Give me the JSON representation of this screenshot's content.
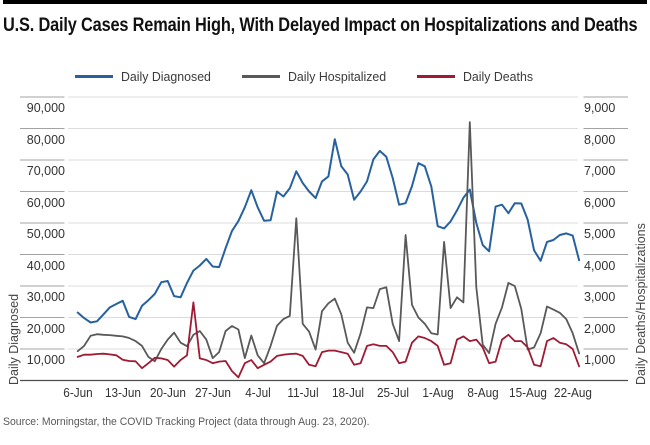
{
  "chart_data": {
    "type": "line",
    "title": "U.S. Daily Cases Remain High, With Delayed Impact on Hospitalizations and Deaths",
    "grid": "horizontal",
    "legend_position": "top",
    "n_points": 79,
    "x_ticks": {
      "labels": [
        "6-Jun",
        "13-Jun",
        "20-Jun",
        "27-Jun",
        "4-Jul",
        "11-Jul",
        "18-Jul",
        "25-Jul",
        "1-Aug",
        "8-Aug",
        "15-Aug",
        "22-Aug"
      ],
      "point_indices": [
        0,
        7,
        14,
        21,
        28,
        35,
        42,
        49,
        56,
        63,
        70,
        77
      ]
    },
    "left_axis": {
      "title": "Daily Diagnosed",
      "min": 0,
      "max": 90000,
      "tick_step": 10000,
      "tick_labels": [
        "10,000",
        "20,000",
        "30,000",
        "40,000",
        "50,000",
        "60,000",
        "70,000",
        "80,000",
        "90,000"
      ]
    },
    "right_axis": {
      "title": "Daily Deaths/Hospitalizations",
      "min": 0,
      "max": 9000,
      "tick_step": 1000,
      "tick_labels": [
        "1,000",
        "2,000",
        "3,000",
        "4,000",
        "5,000",
        "6,000",
        "7,000",
        "8,000",
        "9,000"
      ]
    },
    "series": [
      {
        "name": "Daily Diagnosed",
        "axis": "left",
        "color": "#27619E",
        "values": [
          21600,
          19800,
          18400,
          18800,
          21000,
          23200,
          24300,
          25300,
          20200,
          19500,
          23700,
          25500,
          27500,
          31200,
          31600,
          26800,
          26400,
          31000,
          34900,
          36500,
          38600,
          36200,
          36000,
          42000,
          47500,
          50600,
          55000,
          60400,
          55000,
          50700,
          50900,
          60000,
          58400,
          61000,
          66400,
          62700,
          60000,
          57900,
          63200,
          64800,
          76600,
          68000,
          65400,
          57400,
          60000,
          63200,
          70200,
          72900,
          71000,
          64300,
          55800,
          56300,
          61700,
          69000,
          68000,
          61600,
          49000,
          48300,
          50500,
          54000,
          58000,
          60600,
          50000,
          43000,
          41000,
          55200,
          55800,
          53100,
          56300,
          56200,
          51000,
          41300,
          38000,
          44000,
          44600,
          46200,
          46700,
          46000,
          38200
        ]
      },
      {
        "name": "Daily Hospitalized",
        "axis": "right",
        "color": "#59595B",
        "values": [
          930,
          1100,
          1420,
          1470,
          1450,
          1440,
          1420,
          1400,
          1350,
          1250,
          1100,
          750,
          610,
          1000,
          1300,
          1520,
          1200,
          1090,
          1450,
          1570,
          1300,
          710,
          900,
          1570,
          1730,
          1620,
          710,
          1430,
          800,
          550,
          1100,
          1740,
          1950,
          2050,
          5150,
          1800,
          1550,
          980,
          2200,
          2450,
          2600,
          2100,
          1200,
          880,
          1500,
          2320,
          2300,
          2900,
          2960,
          1800,
          1250,
          4620,
          2400,
          2000,
          1800,
          1500,
          1460,
          4400,
          2300,
          2640,
          2480,
          8200,
          2960,
          1140,
          870,
          1800,
          2320,
          3100,
          3000,
          2270,
          980,
          1050,
          1500,
          2350,
          2250,
          2150,
          1950,
          1500,
          860
        ]
      },
      {
        "name": "Daily Deaths",
        "axis": "right",
        "color": "#9E1B34",
        "values": [
          750,
          820,
          820,
          840,
          850,
          830,
          800,
          660,
          620,
          610,
          390,
          550,
          720,
          700,
          650,
          440,
          650,
          800,
          2480,
          700,
          650,
          550,
          600,
          620,
          300,
          100,
          550,
          650,
          390,
          500,
          600,
          780,
          820,
          840,
          850,
          780,
          500,
          450,
          900,
          950,
          950,
          900,
          850,
          500,
          550,
          1100,
          1150,
          1100,
          1100,
          900,
          550,
          600,
          1200,
          1400,
          1350,
          1250,
          1100,
          500,
          550,
          1300,
          1400,
          1250,
          1300,
          1050,
          550,
          600,
          1300,
          1450,
          1250,
          1250,
          1050,
          500,
          450,
          1250,
          1350,
          1200,
          1150,
          1000,
          450
        ]
      }
    ],
    "style": {
      "gridline_color": "#DCDCDC",
      "tick_segment_color": "#A3A3A3",
      "axis_line_color": "#4D4D4D"
    }
  },
  "footer": {
    "source": "Source: Morningstar, the COVID Tracking Project (data through Aug. 23, 2020)."
  }
}
